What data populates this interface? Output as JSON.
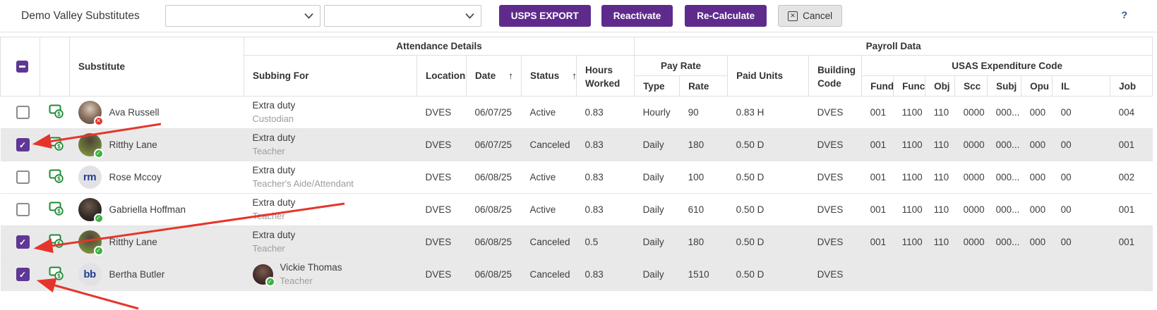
{
  "toolbar": {
    "title": "Demo Valley Substitutes",
    "dropdown1_value": "",
    "dropdown2_value": "",
    "buttons": {
      "usps_export": "USPS EXPORT",
      "reactivate": "Reactivate",
      "recalculate": "Re-Calculate",
      "cancel": "Cancel"
    },
    "cancel_icon_glyph": "✕",
    "help": "?"
  },
  "table": {
    "groups": {
      "attendance": "Attendance Details",
      "payroll": "Payroll Data",
      "pay_rate": "Pay Rate",
      "usas": "USAS Expenditure Code"
    },
    "columns": {
      "substitute": "Substitute",
      "subbing_for": "Subbing For",
      "location": "Location",
      "date": "Date",
      "status": "Status",
      "hours_worked": "Hours Worked",
      "type": "Type",
      "rate": "Rate",
      "paid_units": "Paid Units",
      "building_code": "Building Code",
      "fund": "Fund",
      "func": "Func",
      "obj": "Obj",
      "scc": "Scc",
      "subj": "Subj",
      "opu": "Opu",
      "il": "IL",
      "job": "Job"
    },
    "sort_icon": "↑",
    "rows": [
      {
        "selected": false,
        "arrow": false,
        "substitute": {
          "name": "Ava Russell",
          "avatar": {
            "kind": "photo",
            "photo_id": 1,
            "badge": "x"
          }
        },
        "subbing_for": {
          "line1": "Extra duty",
          "line2": "Custodian",
          "avatar": null
        },
        "location": "DVES",
        "date": "06/07/25",
        "status": "Active",
        "hours": "0.83",
        "type": "Hourly",
        "rate": "90",
        "paid_units": "0.83 H",
        "building_code": "DVES",
        "fund": "001",
        "func": "1100",
        "obj": "110",
        "scc": "0000",
        "subj": "000...",
        "opu": "000",
        "il": "00",
        "job": "004"
      },
      {
        "selected": true,
        "arrow": true,
        "substitute": {
          "name": "Ritthy Lane",
          "avatar": {
            "kind": "photo",
            "photo_id": 2,
            "badge": "check"
          }
        },
        "subbing_for": {
          "line1": "Extra duty",
          "line2": "Teacher",
          "avatar": null
        },
        "location": "DVES",
        "date": "06/07/25",
        "status": "Canceled",
        "hours": "0.83",
        "type": "Daily",
        "rate": "180",
        "paid_units": "0.50 D",
        "building_code": "DVES",
        "fund": "001",
        "func": "1100",
        "obj": "110",
        "scc": "0000",
        "subj": "000...",
        "opu": "000",
        "il": "00",
        "job": "001"
      },
      {
        "selected": false,
        "arrow": false,
        "substitute": {
          "name": "Rose Mccoy",
          "avatar": {
            "kind": "initials",
            "initials": "rm",
            "badge": null
          }
        },
        "subbing_for": {
          "line1": "Extra duty",
          "line2": "Teacher's Aide/Attendant",
          "avatar": null
        },
        "location": "DVES",
        "date": "06/08/25",
        "status": "Active",
        "hours": "0.83",
        "type": "Daily",
        "rate": "100",
        "paid_units": "0.50 D",
        "building_code": "DVES",
        "fund": "001",
        "func": "1100",
        "obj": "110",
        "scc": "0000",
        "subj": "000...",
        "opu": "000",
        "il": "00",
        "job": "002"
      },
      {
        "selected": false,
        "arrow": false,
        "substitute": {
          "name": "Gabriella Hoffman",
          "avatar": {
            "kind": "photo",
            "photo_id": 3,
            "badge": "check"
          }
        },
        "subbing_for": {
          "line1": "Extra duty",
          "line2": "Teacher",
          "avatar": null
        },
        "location": "DVES",
        "date": "06/08/25",
        "status": "Active",
        "hours": "0.83",
        "type": "Daily",
        "rate": "610",
        "paid_units": "0.50 D",
        "building_code": "DVES",
        "fund": "001",
        "func": "1100",
        "obj": "110",
        "scc": "0000",
        "subj": "000...",
        "opu": "000",
        "il": "00",
        "job": "001"
      },
      {
        "selected": true,
        "arrow": true,
        "substitute": {
          "name": "Ritthy Lane",
          "avatar": {
            "kind": "photo",
            "photo_id": 2,
            "badge": "check"
          }
        },
        "subbing_for": {
          "line1": "Extra duty",
          "line2": "Teacher",
          "avatar": null
        },
        "location": "DVES",
        "date": "06/08/25",
        "status": "Canceled",
        "hours": "0.5",
        "type": "Daily",
        "rate": "180",
        "paid_units": "0.50 D",
        "building_code": "DVES",
        "fund": "001",
        "func": "1100",
        "obj": "110",
        "scc": "0000",
        "subj": "000...",
        "opu": "000",
        "il": "00",
        "job": "001"
      },
      {
        "selected": true,
        "arrow": true,
        "substitute": {
          "name": "Bertha Butler",
          "avatar": {
            "kind": "initials",
            "initials": "bb",
            "badge": null
          }
        },
        "subbing_for": {
          "line1": "Vickie Thomas",
          "line2": "Teacher",
          "avatar": {
            "kind": "photo",
            "photo_id": 4,
            "badge": "check"
          }
        },
        "location": "DVES",
        "date": "06/08/25",
        "status": "Canceled",
        "hours": "0.83",
        "type": "Daily",
        "rate": "1510",
        "paid_units": "0.50 D",
        "building_code": "DVES",
        "fund": "",
        "func": "",
        "obj": "",
        "scc": "",
        "subj": "",
        "opu": "",
        "il": "",
        "job": ""
      }
    ]
  },
  "colors": {
    "accent": "#5e2b8d",
    "accent_checkbox": "#5f3795",
    "selected_row": "#e9e9e9",
    "badge_green": "#3cb043",
    "badge_red": "#e5352b",
    "green_icon": "#1d8a34",
    "arrow_red": "#e5352b",
    "initials_blue": "#23408f",
    "cancel_bg": "#e4e4e4"
  },
  "icons": {
    "check_glyph": "✓",
    "x_glyph": "✕"
  }
}
